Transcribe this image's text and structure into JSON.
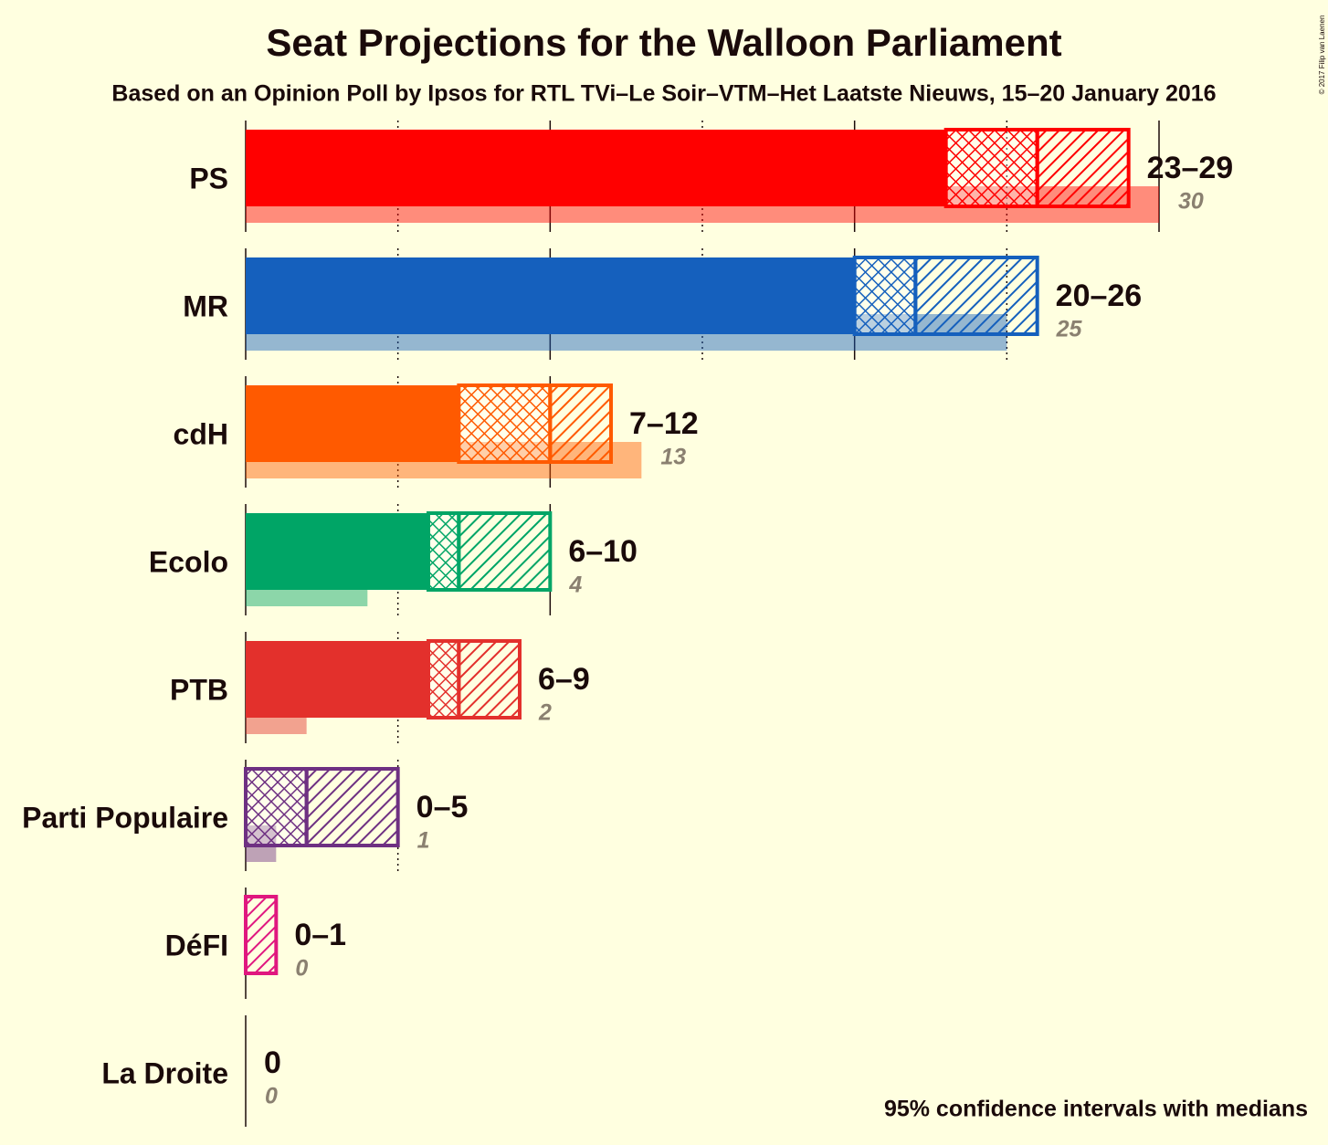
{
  "chart_data": {
    "type": "range-bar",
    "title": "Seat Projections for the Walloon Parliament",
    "subtitle": "Based on an Opinion Poll by Ipsos for RTL TVi–Le Soir–VTM–Het Laatste Nieuws, 15–20 January 2016",
    "caption": "95% confidence intervals with medians",
    "copyright": "© 2017 Filip van Laenen",
    "xlim": [
      0,
      30
    ],
    "xticks": [
      0,
      5,
      10,
      15,
      20,
      25,
      30
    ],
    "grid": true,
    "series": [
      {
        "name": "PS",
        "color": "#ff0000",
        "low": 23,
        "median": 26,
        "high": 29,
        "last": 30,
        "range_label": "23–29"
      },
      {
        "name": "MR",
        "color": "#1560bd",
        "low": 20,
        "median": 22,
        "high": 26,
        "last": 25,
        "range_label": "20–26"
      },
      {
        "name": "cdH",
        "color": "#ff5a00",
        "low": 7,
        "median": 10,
        "high": 12,
        "last": 13,
        "range_label": "7–12"
      },
      {
        "name": "Ecolo",
        "color": "#00a566",
        "low": 6,
        "median": 7,
        "high": 10,
        "last": 4,
        "range_label": "6–10"
      },
      {
        "name": "PTB",
        "color": "#e3302c",
        "low": 6,
        "median": 7,
        "high": 9,
        "last": 2,
        "range_label": "6–9"
      },
      {
        "name": "Parti Populaire",
        "color": "#6e3082",
        "low": 0,
        "median": 2,
        "high": 5,
        "last": 1,
        "range_label": "0–5"
      },
      {
        "name": "DéFI",
        "color": "#e0177f",
        "low": 0,
        "median": 0,
        "high": 1,
        "last": 0,
        "range_label": "0–1"
      },
      {
        "name": "La Droite",
        "color": "#0a3b7c",
        "low": 0,
        "median": 0,
        "high": 0,
        "last": 0,
        "range_label": "0"
      }
    ]
  }
}
